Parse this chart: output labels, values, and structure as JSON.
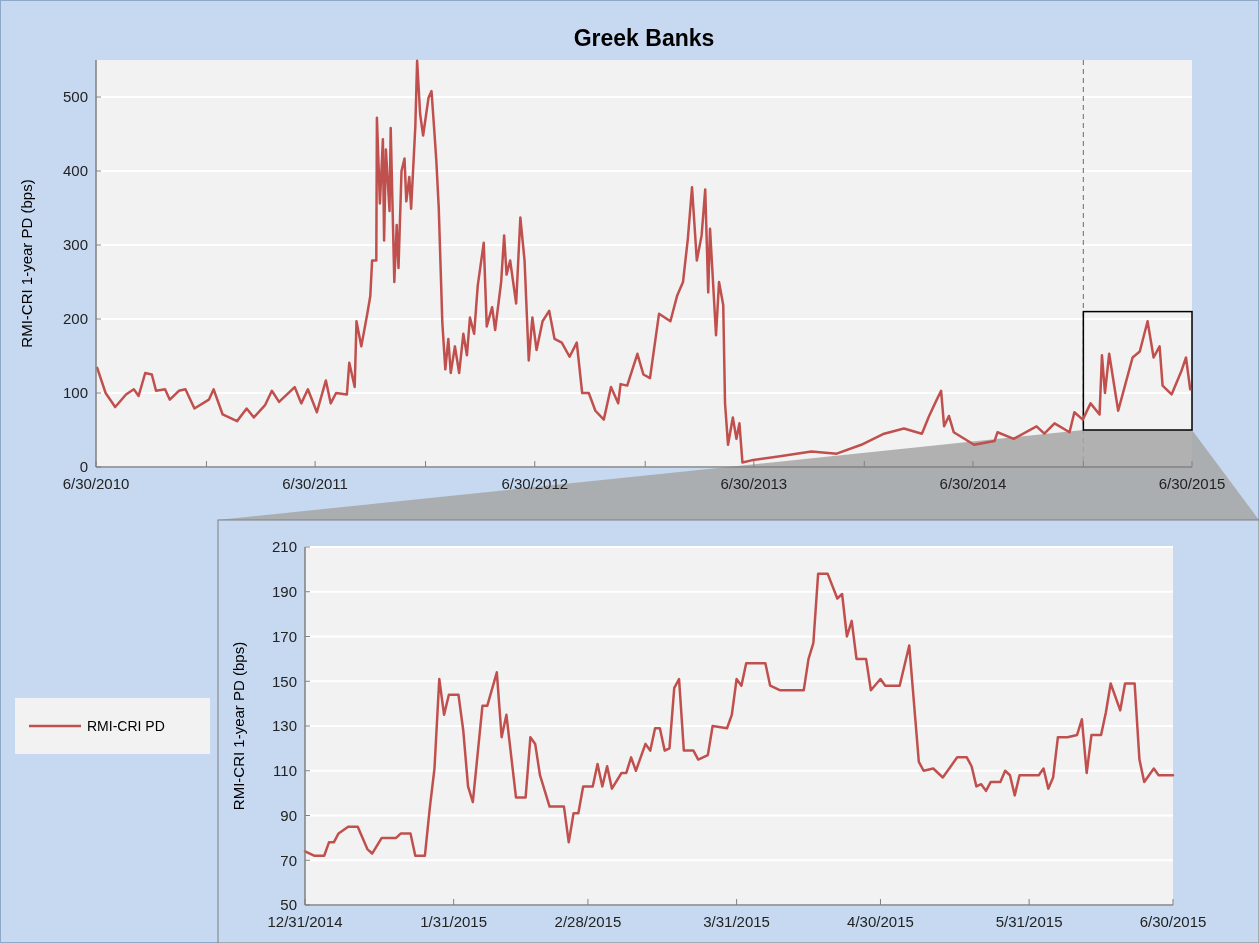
{
  "chart_data": [
    {
      "type": "line",
      "title": "Greek Banks",
      "ylabel": "RMI-CRI  1-year PD (bps)",
      "x": [
        "2010-07-02",
        "2010-07-16",
        "2010-08-01",
        "2010-08-19",
        "2010-09-01",
        "2010-09-09",
        "2010-09-20",
        "2010-10-01",
        "2010-10-08",
        "2010-10-23",
        "2010-10-31",
        "2010-11-15",
        "2010-11-26",
        "2010-12-11",
        "2011-01-04",
        "2011-01-12",
        "2011-01-27",
        "2011-02-20",
        "2011-03-08",
        "2011-03-20",
        "2011-04-08",
        "2011-04-19",
        "2011-05-01",
        "2011-05-27",
        "2011-06-07",
        "2011-06-18",
        "2011-07-03",
        "2011-07-18",
        "2011-07-26",
        "2011-08-04",
        "2011-08-22",
        "2011-08-26",
        "2011-09-04",
        "2011-09-07",
        "2011-09-15",
        "2011-09-25",
        "2011-09-30",
        "2011-10-03",
        "2011-10-10",
        "2011-10-11",
        "2011-10-16",
        "2011-10-21",
        "2011-10-23",
        "2011-10-26",
        "2011-11-01",
        "2011-11-03",
        "2011-11-09",
        "2011-11-13",
        "2011-11-16",
        "2011-11-21",
        "2011-11-26",
        "2011-11-29",
        "2011-12-04",
        "2011-12-07",
        "2011-12-14",
        "2011-12-17",
        "2011-12-22",
        "2011-12-27",
        "2012-01-05",
        "2012-01-10",
        "2012-01-15",
        "2012-01-18",
        "2012-01-22",
        "2012-01-28",
        "2012-02-02",
        "2012-02-07",
        "2012-02-11",
        "2012-02-18",
        "2012-02-25",
        "2012-03-03",
        "2012-03-09",
        "2012-03-14",
        "2012-03-21",
        "2012-03-27",
        "2012-04-06",
        "2012-04-11",
        "2012-04-20",
        "2012-04-25",
        "2012-05-05",
        "2012-05-10",
        "2012-05-14",
        "2012-05-20",
        "2012-05-30",
        "2012-06-06",
        "2012-06-13",
        "2012-06-20",
        "2012-06-26",
        "2012-07-03",
        "2012-07-13",
        "2012-07-24",
        "2012-08-02",
        "2012-08-14",
        "2012-08-27",
        "2012-09-08",
        "2012-09-17",
        "2012-09-28",
        "2012-10-09",
        "2012-10-23",
        "2012-11-04",
        "2012-11-16",
        "2012-11-20",
        "2012-12-01",
        "2012-12-18",
        "2012-12-28",
        "2013-01-08",
        "2013-01-23",
        "2013-02-11",
        "2013-02-22",
        "2013-03-04",
        "2013-03-12",
        "2013-03-19",
        "2013-03-27",
        "2013-04-04",
        "2013-04-10",
        "2013-04-15",
        "2013-04-18",
        "2013-04-28",
        "2013-05-03",
        "2013-05-10",
        "2013-05-13",
        "2013-05-18",
        "2013-05-26",
        "2013-06-01",
        "2013-06-06",
        "2013-06-11",
        "2013-06-26",
        "2013-08-07",
        "2013-10-04",
        "2013-11-15",
        "2013-12-26",
        "2014-02-02",
        "2014-03-07",
        "2014-04-06",
        "2014-04-18",
        "2014-04-29",
        "2014-05-08",
        "2014-05-13",
        "2014-05-21",
        "2014-05-29",
        "2014-07-02",
        "2014-08-05",
        "2014-08-10",
        "2014-09-06",
        "2014-10-14",
        "2014-10-27",
        "2014-11-13",
        "2014-12-08",
        "2014-12-16",
        "2014-12-30",
        "2015-01-12",
        "2015-01-27",
        "2015-01-31",
        "2015-02-05",
        "2015-02-12",
        "2015-02-27",
        "2015-03-11",
        "2015-03-23",
        "2015-04-04",
        "2015-04-17",
        "2015-04-27",
        "2015-05-07",
        "2015-05-12",
        "2015-05-27",
        "2015-06-12",
        "2015-06-20",
        "2015-06-27"
      ],
      "series": [
        {
          "color": "#c0504d",
          "values": [
            134,
            100,
            81,
            98,
            105,
            96,
            127,
            125,
            103,
            105,
            91,
            103,
            105,
            79,
            91,
            105,
            71,
            62,
            79,
            67,
            84,
            103,
            88,
            108,
            86,
            105,
            74,
            117,
            86,
            100,
            98,
            141,
            108,
            197,
            163,
            207,
            231,
            279,
            279,
            472,
            356,
            443,
            306,
            429,
            346,
            458,
            250,
            327,
            269,
            400,
            417,
            359,
            392,
            349,
            460,
            549,
            477,
            448,
            499,
            508,
            450,
            414,
            351,
            195,
            132,
            173,
            127,
            163,
            127,
            180,
            151,
            202,
            180,
            245,
            303,
            190,
            216,
            185,
            250,
            313,
            260,
            279,
            221,
            337,
            279,
            144,
            202,
            158,
            197,
            211,
            173,
            168,
            149,
            168,
            100,
            100,
            76,
            64,
            108,
            86,
            112,
            110,
            153,
            125,
            120,
            207,
            197,
            231,
            250,
            308,
            378,
            279,
            313,
            375,
            236,
            322,
            178,
            250,
            219,
            86,
            30,
            67,
            38,
            59,
            6,
            9,
            14,
            21,
            18,
            30,
            45,
            52,
            45,
            69,
            88,
            103,
            55,
            69,
            47,
            30,
            35,
            47,
            38,
            55,
            45,
            59,
            47,
            74,
            64,
            86,
            71,
            151,
            100,
            153,
            76,
            112,
            148,
            156,
            197,
            148,
            163,
            110,
            98,
            129,
            148,
            105
          ]
        }
      ],
      "xlim": [
        "2010-06-30",
        "2015-06-30"
      ],
      "xticks": [
        {
          "value": "2010-06-30",
          "label": "6/30/2010"
        },
        {
          "value": "2010-12-31",
          "label": null
        },
        {
          "value": "2011-06-30",
          "label": "6/30/2011"
        },
        {
          "value": "2011-12-31",
          "label": null
        },
        {
          "value": "2012-06-30",
          "label": "6/30/2012"
        },
        {
          "value": "2012-12-31",
          "label": null
        },
        {
          "value": "2013-06-30",
          "label": "6/30/2013"
        },
        {
          "value": "2013-12-31",
          "label": null
        },
        {
          "value": "2014-06-30",
          "label": "6/30/2014"
        },
        {
          "value": "2014-12-31",
          "label": null
        },
        {
          "value": "2015-06-30",
          "label": "6/30/2015"
        }
      ],
      "ylim": [
        0,
        550
      ],
      "yticks": [
        0,
        100,
        200,
        300,
        400,
        500
      ],
      "grid": "y",
      "legend": false,
      "ref_lines": [
        {
          "axis": "x",
          "value": "2014-12-31",
          "color": "#7f7f7f",
          "line_style": "dashed"
        }
      ]
    },
    {
      "type": "line",
      "ylabel": "RMI-CRI  1-year PD (bps)",
      "x": [
        "2014-12-31",
        "2015-01-02",
        "2015-01-04",
        "2015-01-05",
        "2015-01-06",
        "2015-01-07",
        "2015-01-09",
        "2015-01-11",
        "2015-01-13",
        "2015-01-14",
        "2015-01-16",
        "2015-01-19",
        "2015-01-20",
        "2015-01-22",
        "2015-01-23",
        "2015-01-25",
        "2015-01-26",
        "2015-01-27",
        "2015-01-28",
        "2015-01-29",
        "2015-01-30",
        "2015-02-01",
        "2015-02-02",
        "2015-02-03",
        "2015-02-04",
        "2015-02-06",
        "2015-02-07",
        "2015-02-09",
        "2015-02-10",
        "2015-02-11",
        "2015-02-13",
        "2015-02-15",
        "2015-02-16",
        "2015-02-17",
        "2015-02-18",
        "2015-02-20",
        "2015-02-23",
        "2015-02-24",
        "2015-02-25",
        "2015-02-26",
        "2015-02-27",
        "2015-03-01",
        "2015-03-02",
        "2015-03-03",
        "2015-03-04",
        "2015-03-05",
        "2015-03-07",
        "2015-03-08",
        "2015-03-09",
        "2015-03-10",
        "2015-03-12",
        "2015-03-13",
        "2015-03-14",
        "2015-03-15",
        "2015-03-16",
        "2015-03-17",
        "2015-03-18",
        "2015-03-19",
        "2015-03-20",
        "2015-03-22",
        "2015-03-23",
        "2015-03-25",
        "2015-03-26",
        "2015-03-29",
        "2015-03-30",
        "2015-03-31",
        "2015-04-01",
        "2015-04-02",
        "2015-04-06",
        "2015-04-07",
        "2015-04-09",
        "2015-04-14",
        "2015-04-15",
        "2015-04-16",
        "2015-04-17",
        "2015-04-19",
        "2015-04-21",
        "2015-04-22",
        "2015-04-23",
        "2015-04-24",
        "2015-04-25",
        "2015-04-27",
        "2015-04-28",
        "2015-04-30",
        "2015-05-01",
        "2015-05-04",
        "2015-05-06",
        "2015-05-08",
        "2015-05-09",
        "2015-05-11",
        "2015-05-13",
        "2015-05-16",
        "2015-05-18",
        "2015-05-19",
        "2015-05-20",
        "2015-05-21",
        "2015-05-22",
        "2015-05-23",
        "2015-05-25",
        "2015-05-26",
        "2015-05-27",
        "2015-05-28",
        "2015-05-29",
        "2015-06-02",
        "2015-06-03",
        "2015-06-04",
        "2015-06-05",
        "2015-06-06",
        "2015-06-08",
        "2015-06-10",
        "2015-06-11",
        "2015-06-12",
        "2015-06-13",
        "2015-06-15",
        "2015-06-16",
        "2015-06-17",
        "2015-06-19",
        "2015-06-20",
        "2015-06-22",
        "2015-06-23",
        "2015-06-24",
        "2015-06-26",
        "2015-06-27",
        "2015-06-30"
      ],
      "series": [
        {
          "name": "RMI-CRI PD",
          "color": "#c0504d",
          "values": [
            74,
            72,
            72,
            78,
            78,
            82,
            85,
            85,
            75,
            73,
            80,
            80,
            82,
            82,
            72,
            72,
            93,
            111,
            151,
            135,
            144,
            144,
            128,
            103,
            96,
            139,
            139,
            154,
            125,
            135,
            98,
            98,
            125,
            122,
            108,
            94,
            94,
            78,
            91,
            91,
            103,
            103,
            113,
            103,
            112,
            102,
            109,
            109,
            116,
            110,
            122,
            119,
            129,
            129,
            119,
            120,
            147,
            151,
            119,
            119,
            115,
            117,
            130,
            129,
            135,
            151,
            148,
            158,
            158,
            148,
            146,
            146,
            160,
            167,
            198,
            198,
            187,
            189,
            170,
            177,
            160,
            160,
            146,
            151,
            148,
            148,
            166,
            114,
            110,
            111,
            107,
            116,
            116,
            112,
            103,
            104,
            101,
            105,
            105,
            110,
            108,
            99,
            108,
            108,
            111,
            102,
            107,
            125,
            125,
            126,
            133,
            109,
            126,
            126,
            136,
            149,
            137,
            149,
            149,
            115,
            105,
            111,
            108,
            108
          ]
        }
      ],
      "xlim": [
        "2014-12-31",
        "2015-06-30"
      ],
      "xticks": [
        {
          "value": "2014-12-31",
          "label": "12/31/2014"
        },
        {
          "value": "2015-01-31",
          "label": "1/31/2015"
        },
        {
          "value": "2015-02-28",
          "label": "2/28/2015"
        },
        {
          "value": "2015-03-31",
          "label": "3/31/2015"
        },
        {
          "value": "2015-04-30",
          "label": "4/30/2015"
        },
        {
          "value": "2015-05-31",
          "label": "5/31/2015"
        },
        {
          "value": "2015-06-30",
          "label": "6/30/2015"
        }
      ],
      "ylim": [
        50,
        210
      ],
      "yticks": [
        50,
        70,
        90,
        110,
        130,
        150,
        170,
        190,
        210
      ],
      "grid": "y",
      "legend": "left"
    }
  ]
}
